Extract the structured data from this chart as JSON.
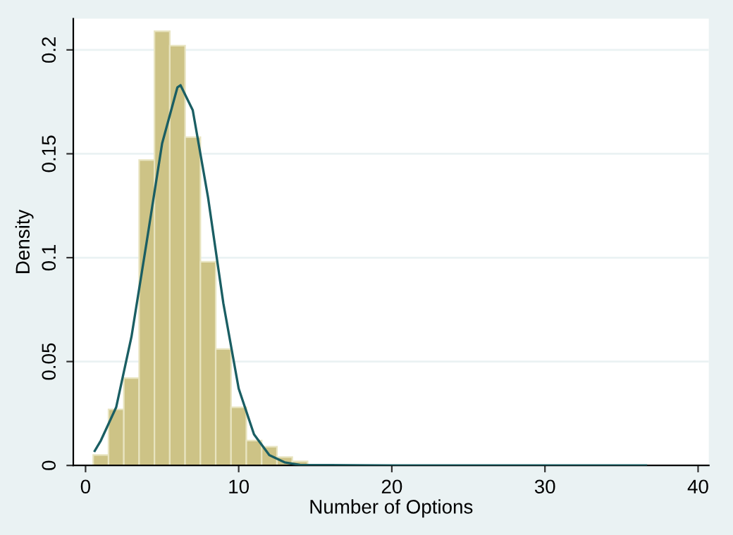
{
  "chart_data": {
    "type": "histogram",
    "xlabel": "Number of Options",
    "ylabel": "Density",
    "color": "#cdc386",
    "bins": [
      0.5,
      1.5,
      2.5,
      3.5,
      4.5,
      5.5,
      6.5,
      7.5,
      8.5,
      9.5,
      10.5,
      11.5,
      12.5,
      13.5,
      14.5,
      15.5,
      16.5,
      17.5,
      18.5,
      19.5,
      20.5,
      21.5,
      22.5,
      23.5,
      24.5,
      25.5,
      26.5,
      27.5,
      28.5,
      29.5,
      30.5,
      31.5,
      32.5,
      33.5,
      34.5,
      35.5,
      36.5
    ],
    "values": [
      0.005,
      0.027,
      0.042,
      0.147,
      0.209,
      0.202,
      0.158,
      0.098,
      0.056,
      0.028,
      0.012,
      0.009,
      0.004,
      0.002,
      null,
      null,
      null,
      null,
      null,
      null,
      null,
      null,
      null,
      null,
      null,
      null,
      null,
      null,
      null,
      null,
      null,
      null,
      null,
      null,
      null,
      null
    ],
    "series": [
      {
        "type": "line",
        "color": "#1a5e63",
        "x": [
          0.6,
          1,
          2,
          3,
          4,
          5,
          6,
          6.2,
          7,
          8,
          9,
          10,
          11,
          12,
          13,
          14,
          20,
          30,
          36.6
        ],
        "values": [
          0.007,
          0.012,
          0.028,
          0.062,
          0.108,
          0.155,
          0.182,
          0.183,
          0.171,
          0.129,
          0.078,
          0.037,
          0.015,
          0.005,
          0.0015,
          0.0003,
          0,
          0,
          0
        ]
      }
    ],
    "xlim": [
      -0.8,
      40.7
    ],
    "ylim": [
      0,
      0.215
    ],
    "xticks": [
      0,
      10,
      20,
      30,
      40
    ],
    "yticks": [
      0,
      0.05,
      0.1,
      0.15,
      0.2
    ],
    "grid": "y"
  }
}
